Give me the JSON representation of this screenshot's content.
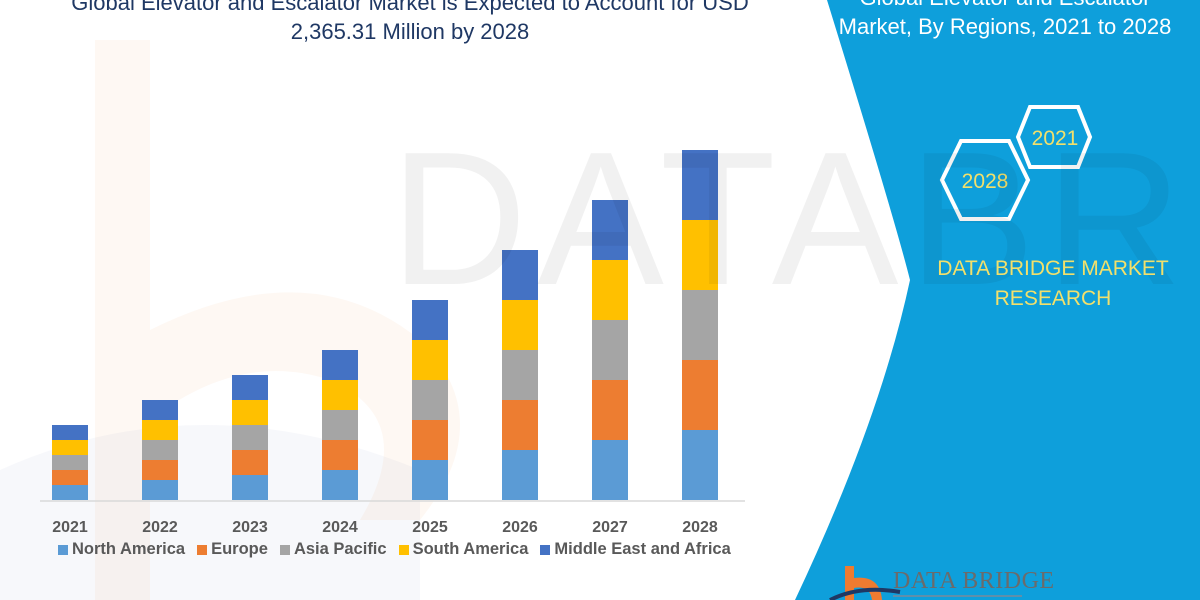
{
  "title_left": {
    "line1": "Global Elevator and Escalator Market is Expected to Account for USD",
    "line2": "2,365.31 Million by 2028"
  },
  "title_right": {
    "line1": "Global Elevator and Escalator",
    "line2": "Market, By Regions, 2021 to 2028"
  },
  "hexagons": {
    "start": "2021",
    "end": "2028"
  },
  "brand": {
    "line1": "DATA BRIDGE MARKET",
    "line2": "RESEARCH"
  },
  "logo": {
    "text": "DATA BRIDGE"
  },
  "watermark": "DATABRIDGE",
  "colors": {
    "panel": "#0e9fdb",
    "title": "#1f3864",
    "brand_text": "#f2e06b"
  },
  "chart_data": {
    "type": "bar",
    "stacked": true,
    "categories": [
      "2021",
      "2022",
      "2023",
      "2024",
      "2025",
      "2026",
      "2027",
      "2028"
    ],
    "series": [
      {
        "name": "North America",
        "color": "#5b9bd5",
        "values": [
          15,
          20,
          25,
          30,
          40,
          50,
          60,
          70
        ]
      },
      {
        "name": "Europe",
        "color": "#ed7d31",
        "values": [
          15,
          20,
          25,
          30,
          40,
          50,
          60,
          70
        ]
      },
      {
        "name": "Asia Pacific",
        "color": "#a5a5a5",
        "values": [
          15,
          20,
          25,
          30,
          40,
          50,
          60,
          70
        ]
      },
      {
        "name": "South America",
        "color": "#ffc000",
        "values": [
          15,
          20,
          25,
          30,
          40,
          50,
          60,
          70
        ]
      },
      {
        "name": "Middle East and Africa",
        "color": "#4472c4",
        "values": [
          15,
          20,
          25,
          30,
          40,
          50,
          60,
          70
        ]
      }
    ],
    "ylim": [
      0,
      350
    ],
    "y_axis_shown": false,
    "grid": false,
    "legend_position": "bottom"
  }
}
